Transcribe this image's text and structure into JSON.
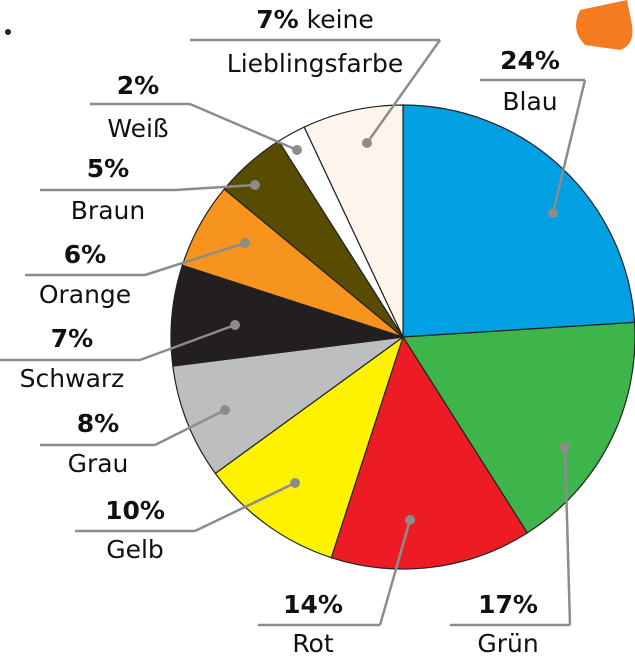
{
  "chart_data": {
    "type": "pie",
    "categories": [
      "Blau",
      "Grün",
      "Rot",
      "Gelb",
      "Grau",
      "Schwarz",
      "Orange",
      "Braun",
      "Weiß",
      "keine Lieblingsfarbe"
    ],
    "values": [
      24,
      17,
      14,
      10,
      8,
      7,
      6,
      5,
      2,
      7
    ],
    "value_labels": [
      "24%",
      "17%",
      "14%",
      "10%",
      "8%",
      "7%",
      "6%",
      "5%",
      "2%",
      "7%"
    ],
    "colors": [
      "#00a0e3",
      "#3db54a",
      "#ed1c24",
      "#fff200",
      "#bcbec0",
      "#231f20",
      "#f7941d",
      "#574c00",
      "#ffffff",
      "#fdf5ec"
    ]
  }
}
